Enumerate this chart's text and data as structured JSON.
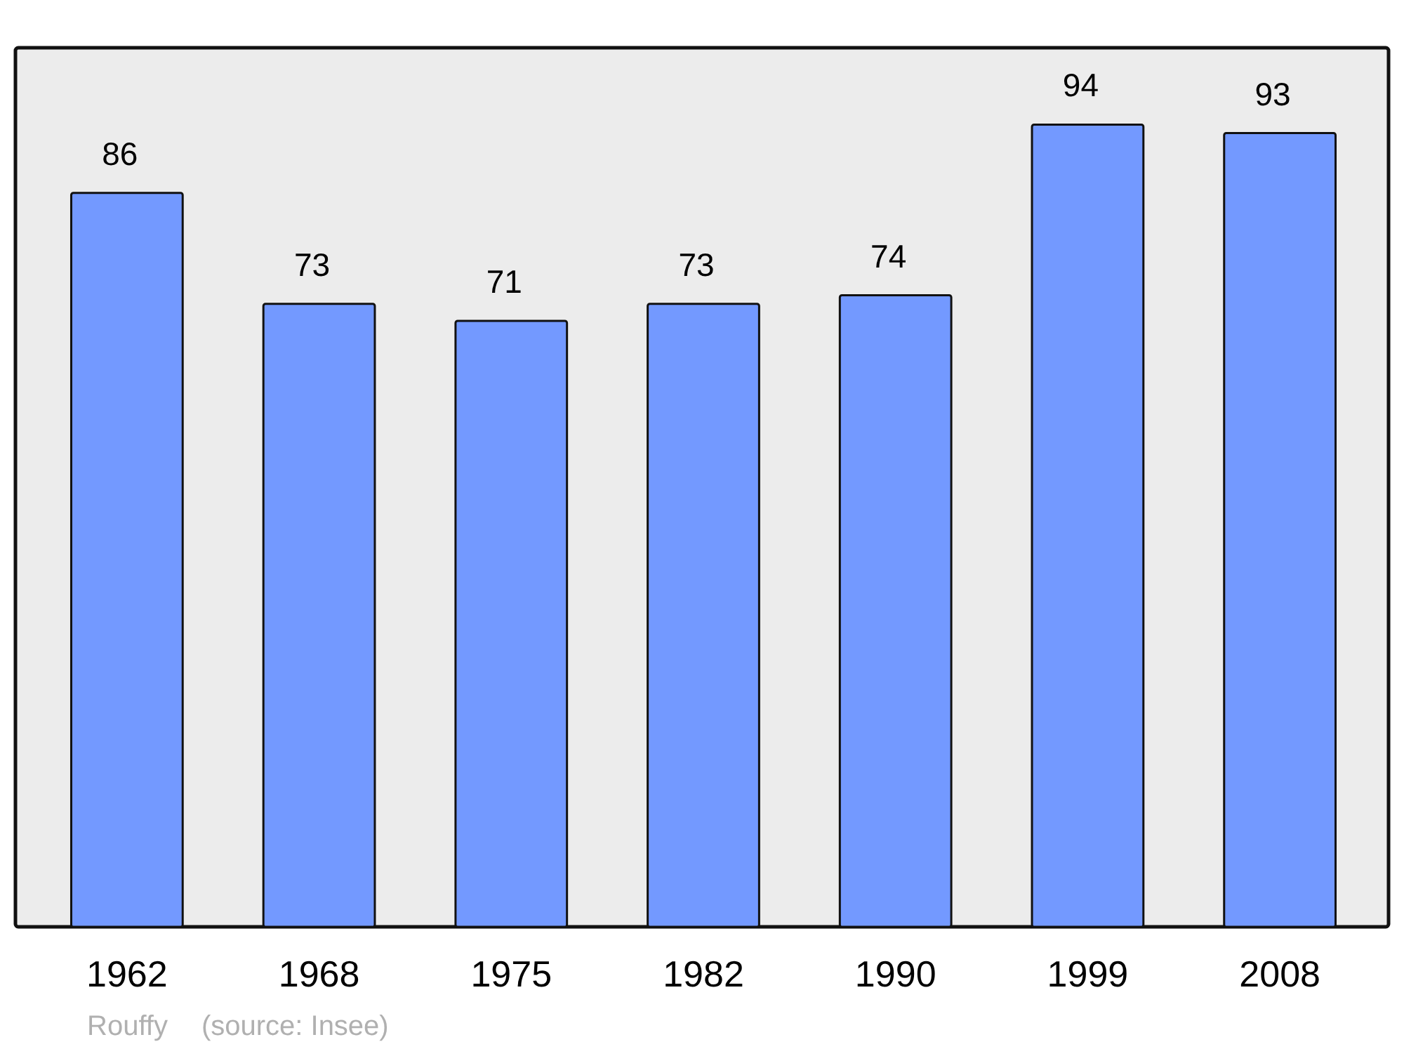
{
  "chart_data": {
    "type": "bar",
    "categories": [
      "1962",
      "1968",
      "1975",
      "1982",
      "1990",
      "1999",
      "2008"
    ],
    "values": [
      86,
      73,
      71,
      73,
      74,
      94,
      93
    ],
    "color": "#7399ff",
    "ylim": [
      0,
      103
    ],
    "data_labels": true,
    "annotations": [
      "Rouffy",
      "(source: Insee)"
    ]
  }
}
